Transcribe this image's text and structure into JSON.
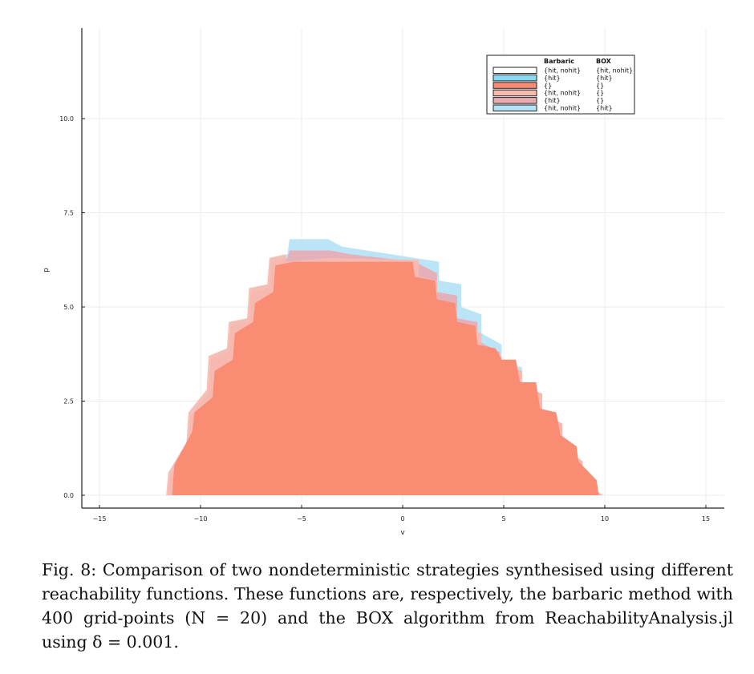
{
  "chart_data": {
    "type": "area",
    "xlabel": "v",
    "ylabel": "p",
    "xlim": [
      -16,
      16
    ],
    "ylim": [
      -0.35,
      12.3
    ],
    "x_ticks": [
      -15,
      -10,
      -5,
      0,
      5,
      10,
      15
    ],
    "x_tick_labels": [
      "−15",
      "−10",
      "−5",
      "0",
      "5",
      "10",
      "15"
    ],
    "y_ticks": [
      0,
      2.5,
      5,
      7.5,
      10
    ],
    "y_tick_labels": [
      "0.0",
      "2.5",
      "5.0",
      "7.5",
      "10.0"
    ],
    "grid": true,
    "legend_position": "top-right",
    "legend": {
      "headers": [
        "Barbaric",
        "BOX"
      ],
      "entries": [
        {
          "barbaric": "{hit, nohit}",
          "box": "{hit, nohit}",
          "color": "#ffffff"
        },
        {
          "barbaric": "{hit}",
          "box": "{hit}",
          "color": "#87dbf5"
        },
        {
          "barbaric": "{}",
          "box": "{}",
          "color": "#fa8c74"
        },
        {
          "barbaric": "{hit, nohit}",
          "box": "{}",
          "color": "#f8b9ae"
        },
        {
          "barbaric": "{hit}",
          "box": "{}",
          "color": "#e9aab2"
        },
        {
          "barbaric": "{hit, nohit}",
          "box": "{hit}",
          "color": "#b4e2f6"
        }
      ]
    },
    "series": [
      {
        "color": "#b4e2f6",
        "polygon": [
          [
            -11.6,
            0
          ],
          [
            -11.5,
            0.6
          ],
          [
            -10.6,
            1.4
          ],
          [
            -10.5,
            2.2
          ],
          [
            -9.6,
            2.8
          ],
          [
            -9.5,
            3.7
          ],
          [
            -8.6,
            3.9
          ],
          [
            -8.5,
            4.6
          ],
          [
            -7.6,
            4.7
          ],
          [
            -7.5,
            5.5
          ],
          [
            -6.6,
            5.6
          ],
          [
            -6.5,
            6.3
          ],
          [
            -5.7,
            6.4
          ],
          [
            -5.6,
            6.8
          ],
          [
            -3.7,
            6.8
          ],
          [
            -3.0,
            6.6
          ],
          [
            0.6,
            6.3
          ],
          [
            1.8,
            6.2
          ],
          [
            1.8,
            5.7
          ],
          [
            2.9,
            5.6
          ],
          [
            2.9,
            5.0
          ],
          [
            3.9,
            4.8
          ],
          [
            3.9,
            4.3
          ],
          [
            4.9,
            4.0
          ],
          [
            4.9,
            3.5
          ],
          [
            5.9,
            3.4
          ],
          [
            5.9,
            2.9
          ],
          [
            6.9,
            2.7
          ],
          [
            6.9,
            2.2
          ],
          [
            7.9,
            1.9
          ],
          [
            7.9,
            1.3
          ],
          [
            8.9,
            0.9
          ],
          [
            8.9,
            0.4
          ],
          [
            9.9,
            0.0
          ]
        ]
      },
      {
        "color": "#e9aab2",
        "polygon": [
          [
            -11.6,
            0
          ],
          [
            -11.5,
            0.5
          ],
          [
            -10.6,
            1.3
          ],
          [
            -10.5,
            2.1
          ],
          [
            -9.6,
            2.7
          ],
          [
            -9.5,
            3.6
          ],
          [
            -8.6,
            3.8
          ],
          [
            -8.5,
            4.5
          ],
          [
            -7.6,
            4.6
          ],
          [
            -7.5,
            5.4
          ],
          [
            -6.6,
            5.5
          ],
          [
            -6.5,
            6.2
          ],
          [
            -5.7,
            6.3
          ],
          [
            -5.6,
            6.5
          ],
          [
            -3.6,
            6.5
          ],
          [
            -2.6,
            6.4
          ],
          [
            0.6,
            6.2
          ],
          [
            1.7,
            5.9
          ],
          [
            1.7,
            5.4
          ],
          [
            2.7,
            5.3
          ],
          [
            2.7,
            4.7
          ],
          [
            3.7,
            4.6
          ],
          [
            3.7,
            4.1
          ],
          [
            4.8,
            3.8
          ],
          [
            4.8,
            3.5
          ],
          [
            5.9,
            3.3
          ],
          [
            5.9,
            2.9
          ],
          [
            6.9,
            2.7
          ],
          [
            6.9,
            2.2
          ],
          [
            7.9,
            1.9
          ],
          [
            7.9,
            1.3
          ],
          [
            8.9,
            0.9
          ],
          [
            8.9,
            0.4
          ],
          [
            9.9,
            0.0
          ]
        ]
      },
      {
        "color": "#f8b9ae",
        "polygon": [
          [
            -11.7,
            0
          ],
          [
            -11.6,
            0.6
          ],
          [
            -10.7,
            1.4
          ],
          [
            -10.6,
            2.2
          ],
          [
            -9.7,
            2.8
          ],
          [
            -9.6,
            3.7
          ],
          [
            -8.7,
            3.9
          ],
          [
            -8.6,
            4.6
          ],
          [
            -7.7,
            4.7
          ],
          [
            -7.6,
            5.5
          ],
          [
            -6.7,
            5.6
          ],
          [
            -6.6,
            6.3
          ],
          [
            -5.8,
            6.4
          ],
          [
            -5.7,
            6.2
          ],
          [
            -3.7,
            6.3
          ],
          [
            0.8,
            6.25
          ],
          [
            0.8,
            5.8
          ],
          [
            1.7,
            5.7
          ],
          [
            1.7,
            5.1
          ],
          [
            2.7,
            5.0
          ],
          [
            2.7,
            4.5
          ],
          [
            3.9,
            4.3
          ],
          [
            3.9,
            3.9
          ],
          [
            4.9,
            3.7
          ],
          [
            4.9,
            3.4
          ],
          [
            5.9,
            3.3
          ],
          [
            5.9,
            2.9
          ],
          [
            6.9,
            2.7
          ],
          [
            6.9,
            2.2
          ],
          [
            7.9,
            1.9
          ],
          [
            7.9,
            1.3
          ],
          [
            8.9,
            0.9
          ],
          [
            8.9,
            0.4
          ],
          [
            9.9,
            0.0
          ]
        ]
      },
      {
        "color": "#fa8c74",
        "polygon": [
          [
            -11.4,
            0
          ],
          [
            -11.3,
            0.8
          ],
          [
            -10.4,
            1.7
          ],
          [
            -10.3,
            2.2
          ],
          [
            -9.4,
            2.6
          ],
          [
            -9.3,
            3.3
          ],
          [
            -8.4,
            3.6
          ],
          [
            -8.3,
            4.3
          ],
          [
            -7.4,
            4.6
          ],
          [
            -7.3,
            5.1
          ],
          [
            -6.4,
            5.4
          ],
          [
            -6.3,
            6.1
          ],
          [
            -5.4,
            6.2
          ],
          [
            -5.3,
            6.2
          ],
          [
            -3.6,
            6.2
          ],
          [
            0.5,
            6.2
          ],
          [
            0.6,
            5.8
          ],
          [
            1.6,
            5.7
          ],
          [
            1.7,
            5.2
          ],
          [
            2.6,
            5.1
          ],
          [
            2.7,
            4.6
          ],
          [
            3.6,
            4.5
          ],
          [
            3.7,
            4.0
          ],
          [
            4.6,
            3.9
          ],
          [
            4.9,
            3.6
          ],
          [
            5.6,
            3.6
          ],
          [
            5.8,
            3.0
          ],
          [
            6.6,
            3.0
          ],
          [
            6.8,
            2.3
          ],
          [
            7.6,
            2.2
          ],
          [
            7.8,
            1.6
          ],
          [
            8.6,
            1.3
          ],
          [
            8.7,
            0.9
          ],
          [
            9.6,
            0.4
          ],
          [
            9.7,
            0.0
          ]
        ]
      }
    ]
  },
  "caption": "Fig. 8: Comparison of two nondeterministic strategies synthesised using different reachability functions. These functions are, respectively, the barbaric method with 400 grid-points (N = 20) and the BOX algorithm from ReachabilityAnal­ysis.jl using δ = 0.001."
}
